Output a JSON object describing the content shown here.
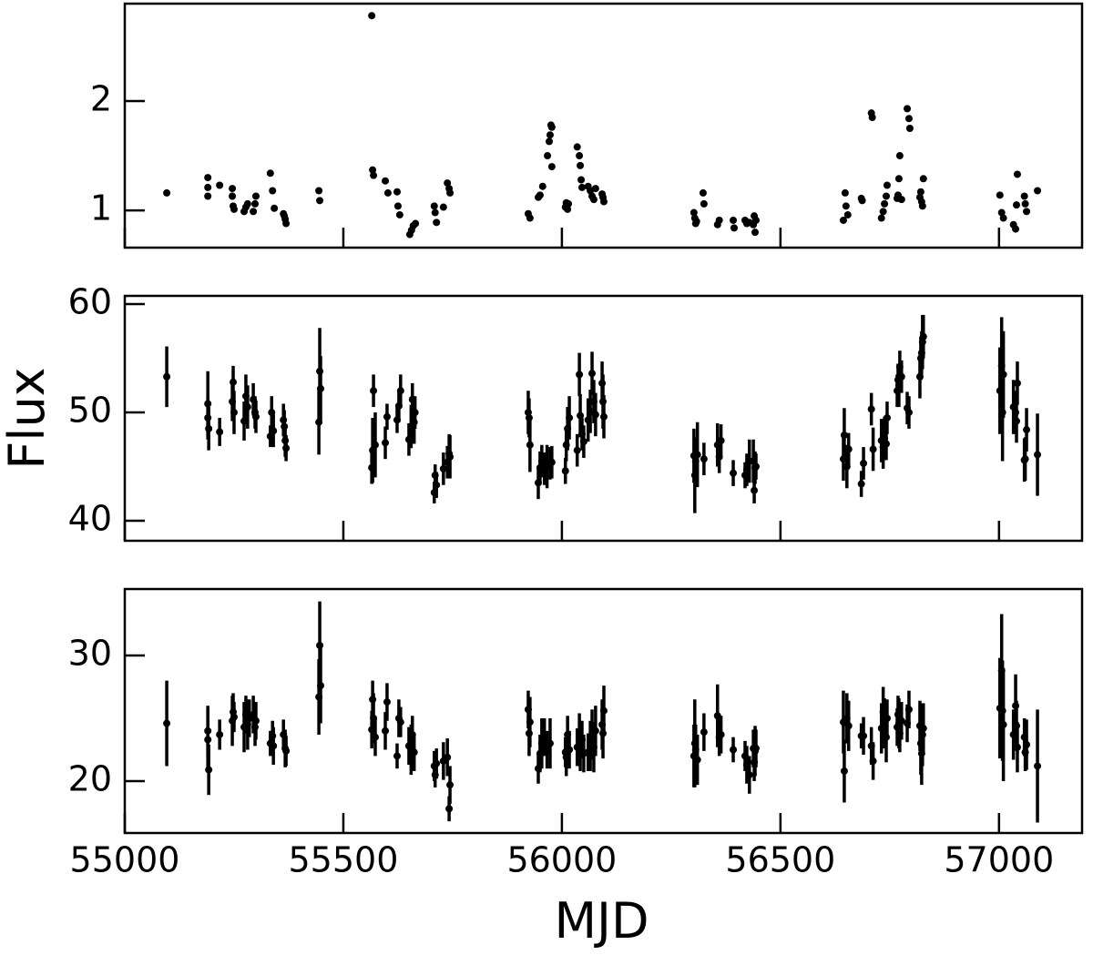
{
  "chart_data": [
    {
      "type": "scatter",
      "color": "#000000",
      "xlim": [
        55000,
        57190
      ],
      "xticks": [
        55000,
        55500,
        56000,
        56500,
        57000
      ],
      "ylim": [
        0.66,
        2.89
      ],
      "yticks": [
        1,
        2
      ],
      "x": [
        55096,
        55190,
        55190,
        55190,
        55217,
        55246,
        55246,
        55248,
        55250,
        55273,
        55277,
        55281,
        55294,
        55298,
        55300,
        55333,
        55338,
        55342,
        55363,
        55365,
        55367,
        55369,
        55444,
        55446,
        55565,
        55567,
        55569,
        55596,
        55602,
        55623,
        55625,
        55629,
        55652,
        55656,
        55660,
        55665,
        55708,
        55710,
        55713,
        55729,
        55738,
        55742,
        55744,
        55923,
        55927,
        55946,
        55950,
        55956,
        55967,
        55971,
        55973,
        55975,
        55977,
        55977,
        56008,
        56010,
        56013,
        56015,
        56035,
        56040,
        56042,
        56044,
        56046,
        56060,
        56065,
        56069,
        56073,
        56077,
        56092,
        56094,
        56096,
        56302,
        56304,
        56306,
        56308,
        56323,
        56325,
        56356,
        56360,
        56392,
        56394,
        56419,
        56423,
        56429,
        56438,
        56440,
        56442,
        56444,
        56644,
        56648,
        56650,
        56654,
        56685,
        56687,
        56708,
        56710,
        56731,
        56735,
        56738,
        56742,
        56744,
        56767,
        56769,
        56771,
        56773,
        56777,
        56790,
        56794,
        56796,
        56819,
        56821,
        56823,
        56825,
        56827,
        57002,
        57006,
        57010,
        57033,
        57038,
        57040,
        57042,
        57058,
        57060,
        57063,
        57088
      ],
      "values": [
        1.16,
        1.3,
        1.21,
        1.13,
        1.23,
        1.2,
        1.13,
        1.04,
        1.01,
        0.99,
        1.03,
        1.06,
        0.99,
        1.06,
        1.13,
        1.34,
        1.18,
        1.02,
        0.97,
        0.95,
        0.92,
        0.88,
        1.18,
        1.09,
        2.78,
        1.37,
        1.32,
        1.27,
        1.16,
        1.17,
        1.04,
        0.96,
        0.78,
        0.82,
        0.86,
        0.88,
        1.04,
        0.98,
        0.89,
        1.03,
        1.25,
        1.2,
        1.16,
        0.97,
        0.93,
        1.12,
        1.14,
        1.22,
        1.5,
        1.63,
        1.69,
        1.78,
        1.76,
        1.4,
        1.03,
        1.07,
        1.01,
        1.06,
        1.58,
        1.5,
        1.41,
        1.28,
        1.21,
        1.22,
        1.18,
        1.13,
        1.1,
        1.2,
        1.15,
        1.12,
        1.08,
        0.98,
        0.93,
        0.88,
        0.9,
        1.16,
        1.06,
        0.87,
        0.91,
        0.91,
        0.84,
        0.91,
        0.88,
        0.89,
        0.87,
        0.95,
        0.8,
        0.91,
        0.91,
        1.16,
        1.04,
        0.96,
        1.11,
        1.09,
        1.89,
        1.85,
        0.93,
        0.99,
        1.06,
        1.13,
        1.23,
        1.11,
        1.14,
        1.29,
        1.5,
        1.1,
        1.93,
        1.84,
        1.75,
        1.12,
        1.17,
        1.08,
        1.04,
        1.29,
        1.14,
        0.98,
        0.93,
        0.87,
        0.83,
        1.05,
        1.33,
        1.13,
        1.06,
        0.99,
        1.18
      ]
    },
    {
      "type": "scatter",
      "color": "#000000",
      "ylabel": "Flux",
      "xlim": [
        55000,
        57190
      ],
      "xticks": [
        55000,
        55500,
        56000,
        56500,
        57000
      ],
      "ylim": [
        38.15,
        60.76
      ],
      "yticks": [
        40,
        50,
        60
      ],
      "x": [
        55096,
        55190,
        55190,
        55192,
        55217,
        55246,
        55248,
        55250,
        55273,
        55277,
        55281,
        55294,
        55298,
        55300,
        55333,
        55336,
        55340,
        55363,
        55365,
        55367,
        55369,
        55444,
        55446,
        55448,
        55565,
        55567,
        55569,
        55573,
        55596,
        55600,
        55623,
        55627,
        55631,
        55650,
        55655,
        55658,
        55662,
        55664,
        55708,
        55710,
        55713,
        55729,
        55738,
        55742,
        55744,
        55923,
        55925,
        55927,
        55946,
        55950,
        55954,
        55960,
        55966,
        55973,
        55977,
        56008,
        56010,
        56013,
        56017,
        56035,
        56040,
        56042,
        56046,
        56050,
        56060,
        56065,
        56069,
        56073,
        56077,
        56092,
        56094,
        56096,
        56302,
        56304,
        56306,
        56310,
        56325,
        56356,
        56360,
        56364,
        56392,
        56419,
        56423,
        56429,
        56438,
        56440,
        56442,
        56444,
        56644,
        56646,
        56652,
        56656,
        56685,
        56690,
        56708,
        56712,
        56731,
        56735,
        56738,
        56742,
        56744,
        56767,
        56769,
        56771,
        56773,
        56777,
        56790,
        56794,
        56819,
        56821,
        56823,
        56825,
        56827,
        57002,
        57006,
        57008,
        57010,
        57033,
        57038,
        57040,
        57042,
        57058,
        57060,
        57063,
        57088
      ],
      "values": [
        53.3,
        50.8,
        49.5,
        48.5,
        48.2,
        51.0,
        52.8,
        50.0,
        49.2,
        51.5,
        50.5,
        51.2,
        50.0,
        49.6,
        47.8,
        50.0,
        48.3,
        49.3,
        48.7,
        47.4,
        46.7,
        49.1,
        53.8,
        52.2,
        44.9,
        46.5,
        52.0,
        47.0,
        47.2,
        49.6,
        49.3,
        50.6,
        52.0,
        47.5,
        48.7,
        51.2,
        49.1,
        50.0,
        42.6,
        44.2,
        43.3,
        44.8,
        45.4,
        46.2,
        45.9,
        50.0,
        49.5,
        47.0,
        43.5,
        44.9,
        45.5,
        44.8,
        45.0,
        45.3,
        45.4,
        44.6,
        47.0,
        48.5,
        49.5,
        46.5,
        53.5,
        49.7,
        48.0,
        47.3,
        49.3,
        50.1,
        53.6,
        51.0,
        49.8,
        52.7,
        51.0,
        49.6,
        46.0,
        44.2,
        45.5,
        46.1,
        45.7,
        47.0,
        45.9,
        47.4,
        44.4,
        44.2,
        44.7,
        45.5,
        45.5,
        42.8,
        44.9,
        45.0,
        45.7,
        47.9,
        45.0,
        46.6,
        43.4,
        45.3,
        50.3,
        46.6,
        47.4,
        46.8,
        47.6,
        47.1,
        49.5,
        52.0,
        53.0,
        52.5,
        54.2,
        53.3,
        50.4,
        50.0,
        53.3,
        55.0,
        55.5,
        56.5,
        57.0,
        52.0,
        54.3,
        50.0,
        53.5,
        50.5,
        50.0,
        49.2,
        52.7,
        45.6,
        45.7,
        48.4,
        46.1
      ],
      "errors": [
        2.8,
        3,
        2,
        2,
        1.3,
        1.8,
        1.5,
        2,
        1.8,
        2,
        2,
        1.5,
        1.5,
        1.5,
        1,
        1.5,
        1.5,
        1.5,
        1.5,
        1.5,
        1.2,
        3,
        4,
        3,
        1.5,
        3,
        1.5,
        3,
        1.5,
        1.2,
        1.2,
        1.5,
        1.5,
        1.5,
        2,
        1.5,
        2,
        1.5,
        1,
        1,
        1.2,
        1.5,
        1.5,
        1.8,
        2,
        2,
        1.8,
        2.5,
        1.5,
        1.5,
        1.5,
        1.5,
        2,
        1.5,
        1.5,
        1.2,
        1.5,
        2,
        2,
        1.5,
        2,
        2,
        1.5,
        1.5,
        2,
        2,
        2,
        2,
        2,
        2,
        2.5,
        2,
        2.5,
        3.5,
        2,
        3,
        1.5,
        2,
        1.5,
        1.5,
        1.2,
        1.2,
        1.5,
        2,
        2,
        1.2,
        1.5,
        1.2,
        2,
        2.5,
        2,
        1.5,
        1.2,
        1.5,
        1.5,
        2,
        2,
        2,
        2,
        1.5,
        1.5,
        1.5,
        1.5,
        2,
        1.5,
        1.5,
        1.5,
        1.5,
        2,
        2,
        2,
        2.5,
        2,
        4,
        4.5,
        4.5,
        4,
        2.5,
        2,
        2,
        2,
        2,
        2,
        2,
        3.8
      ]
    },
    {
      "type": "scatter",
      "color": "#000000",
      "xlabel": "MJD",
      "xlim": [
        55000,
        57190
      ],
      "xticks": [
        55000,
        55500,
        56000,
        56500,
        57000
      ],
      "ylim": [
        15.87,
        35.29
      ],
      "yticks": [
        20,
        30
      ],
      "x": [
        55096,
        55190,
        55190,
        55192,
        55217,
        55246,
        55248,
        55250,
        55273,
        55277,
        55281,
        55285,
        55294,
        55298,
        55300,
        55333,
        55338,
        55340,
        55363,
        55367,
        55369,
        55444,
        55446,
        55448,
        55565,
        55567,
        55569,
        55573,
        55596,
        55600,
        55623,
        55627,
        55631,
        55650,
        55655,
        55658,
        55662,
        55708,
        55710,
        55713,
        55729,
        55738,
        55742,
        55744,
        55923,
        55925,
        55927,
        55946,
        55950,
        55954,
        55960,
        55966,
        55973,
        56008,
        56010,
        56013,
        56017,
        56035,
        56040,
        56042,
        56046,
        56050,
        56060,
        56065,
        56069,
        56073,
        56077,
        56092,
        56094,
        56096,
        56302,
        56304,
        56306,
        56310,
        56325,
        56356,
        56360,
        56364,
        56392,
        56419,
        56423,
        56429,
        56438,
        56440,
        56442,
        56444,
        56644,
        56646,
        56652,
        56656,
        56685,
        56690,
        56708,
        56712,
        56731,
        56735,
        56738,
        56742,
        56744,
        56767,
        56769,
        56771,
        56773,
        56777,
        56790,
        56794,
        56819,
        56821,
        56823,
        56825,
        56827,
        57002,
        57006,
        57008,
        57010,
        57033,
        57038,
        57040,
        57042,
        57058,
        57060,
        57063,
        57088
      ],
      "values": [
        24.6,
        24.0,
        23.3,
        20.9,
        23.7,
        24.8,
        25.5,
        25.1,
        24.3,
        25.3,
        24.5,
        25.0,
        25.3,
        24.3,
        24.8,
        23.0,
        23.6,
        22.8,
        23.7,
        22.6,
        22.4,
        26.7,
        30.8,
        27.6,
        24.1,
        26.5,
        25.0,
        23.5,
        24.0,
        26.3,
        22.0,
        25.0,
        24.7,
        22.8,
        22.5,
        23.7,
        22.3,
        21.2,
        20.5,
        21.4,
        21.6,
        21.9,
        17.8,
        19.7,
        25.7,
        23.8,
        24.7,
        21.0,
        22.2,
        23.0,
        23.5,
        22.5,
        23.0,
        22.3,
        21.9,
        23.7,
        22.5,
        22.7,
        23.9,
        22.8,
        23.3,
        22.2,
        22.3,
        22.8,
        23.7,
        22.7,
        24.0,
        24.5,
        23.8,
        25.6,
        22.0,
        23.0,
        22.5,
        21.7,
        23.9,
        25.2,
        23.5,
        23.7,
        22.5,
        22.0,
        21.3,
        20.5,
        22.6,
        21.5,
        22.4,
        22.6,
        24.7,
        20.8,
        25.0,
        24.4,
        23.6,
        23.6,
        22.8,
        21.6,
        24.2,
        25.5,
        24.6,
        23.5,
        25.0,
        24.3,
        25.3,
        24.6,
        23.8,
        24.8,
        24.6,
        25.7,
        24.4,
        23.0,
        22.2,
        23.7,
        24.2,
        25.8,
        28.8,
        25.6,
        24.5,
        23.7,
        26.0,
        24.4,
        22.7,
        23.5,
        22.3,
        22.9,
        21.2
      ],
      "errors": [
        3.4,
        2,
        2.5,
        2,
        1.2,
        2,
        1.5,
        1.2,
        2,
        1.5,
        2,
        1.5,
        1.5,
        1.5,
        1.5,
        1,
        1.2,
        1.5,
        1.2,
        1.5,
        1.2,
        3,
        3.5,
        3,
        1.5,
        1.5,
        2,
        1.5,
        1.5,
        1.5,
        1,
        1.5,
        1.2,
        1.5,
        2,
        1.5,
        1.5,
        1.2,
        1,
        1.2,
        1.5,
        1.5,
        1,
        1.5,
        1.5,
        1.8,
        2,
        1.2,
        1.5,
        2,
        1.5,
        1.5,
        2,
        1.2,
        1.5,
        1.5,
        1.5,
        1.5,
        1.5,
        2,
        1.5,
        1.5,
        1.5,
        2,
        2,
        2,
        2,
        2,
        2,
        2,
        2.5,
        3.5,
        2,
        2,
        1.5,
        2.5,
        1.5,
        1.5,
        1,
        1.2,
        1.5,
        1.5,
        1.5,
        1.5,
        2,
        1.5,
        2.5,
        2.5,
        2,
        2,
        1,
        1.5,
        1.5,
        1.5,
        2,
        2,
        2,
        2,
        1.5,
        1.5,
        1.5,
        2,
        1.5,
        1.5,
        1.5,
        1.5,
        2,
        2.5,
        2.5,
        2.5,
        2,
        4,
        4.5,
        4,
        4.5,
        2,
        2.5,
        2,
        2,
        1.5,
        1.5,
        2,
        4.5
      ]
    }
  ]
}
